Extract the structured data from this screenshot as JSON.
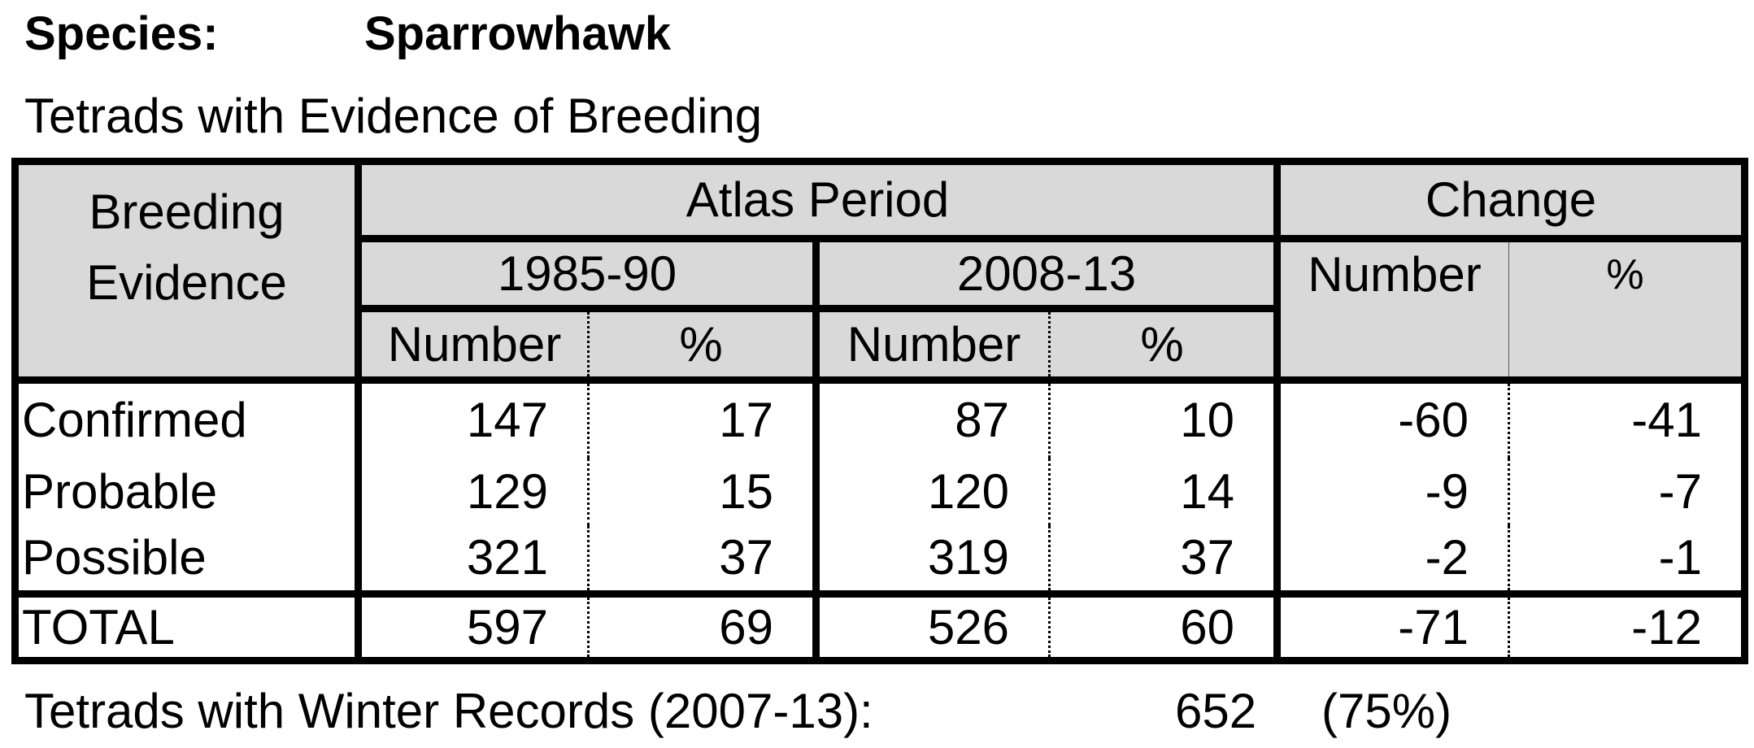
{
  "species_label": "Species:",
  "species_name": "Sparrowhawk",
  "subtitle": "Tetrads with Evidence of Breeding",
  "headers": {
    "breeding_evidence": "Breeding Evidence",
    "atlas_period": "Atlas Period",
    "change": "Change",
    "period1": "1985-90",
    "period2": "2008-13",
    "number": "Number",
    "percent": "%"
  },
  "rows": [
    {
      "label": "Confirmed",
      "n1": "147",
      "p1": "17",
      "n2": "87",
      "p2": "10",
      "cn": "-60",
      "cp": "-41"
    },
    {
      "label": "Probable",
      "n1": "129",
      "p1": "15",
      "n2": "120",
      "p2": "14",
      "cn": "-9",
      "cp": "-7"
    },
    {
      "label": "Possible",
      "n1": "321",
      "p1": "37",
      "n2": "319",
      "p2": "37",
      "cn": "-2",
      "cp": "-1"
    }
  ],
  "total": {
    "label": "TOTAL",
    "n1": "597",
    "p1": "69",
    "n2": "526",
    "p2": "60",
    "cn": "-71",
    "cp": "-12"
  },
  "footer": {
    "label": "Tetrads with Winter Records (2007-13):",
    "number": "652",
    "percent": "(75%)"
  }
}
